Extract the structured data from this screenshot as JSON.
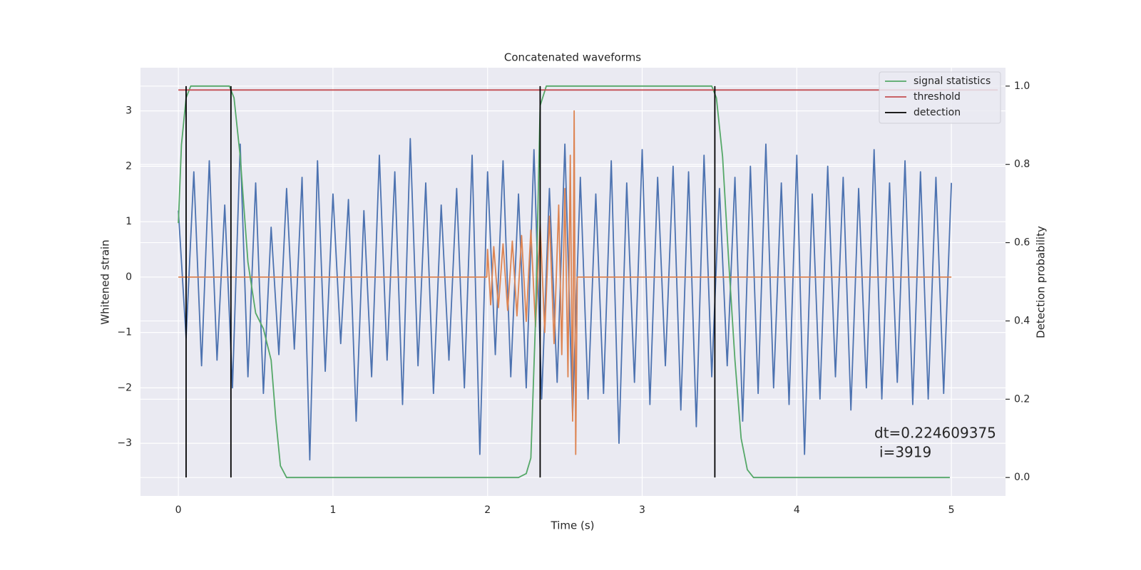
{
  "chart_data": {
    "type": "line",
    "title": "Concatenated waveforms",
    "xlabel": "Time (s)",
    "ylabel": "Whitened strain",
    "y2label": "Detection probability",
    "xlim": [
      -0.245,
      5.35
    ],
    "xticks": [
      0,
      1,
      2,
      3,
      4,
      5
    ],
    "ylim": [
      -3.95,
      3.78
    ],
    "yticks": [
      {
        "value": -3,
        "label": "−3"
      },
      {
        "value": -2,
        "label": "−2"
      },
      {
        "value": -1,
        "label": "−1"
      },
      0,
      1,
      2,
      3
    ],
    "y2lim": [
      -0.047,
      1.047
    ],
    "y2ticks": [
      {
        "value": 0,
        "label": "0.0"
      },
      0.2,
      0.4,
      0.6,
      0.8,
      {
        "value": 1,
        "label": "1.0"
      }
    ],
    "grid": true,
    "legend": "upper right",
    "annotation": [
      "dt=0.224609375",
      "i=3919"
    ],
    "series": [
      {
        "color": "#4c72b0",
        "axis": "y",
        "x": [
          0,
          0.05,
          0.1,
          0.15,
          0.2,
          0.25,
          0.3,
          0.35,
          0.4,
          0.45,
          0.5,
          0.55,
          0.6,
          0.65,
          0.7,
          0.75,
          0.8,
          0.85,
          0.9,
          0.95,
          1,
          1.05,
          1.1,
          1.15,
          1.2,
          1.25,
          1.3,
          1.35,
          1.4,
          1.45,
          1.5,
          1.55,
          1.6,
          1.65,
          1.7,
          1.75,
          1.8,
          1.85,
          1.9,
          1.95,
          2,
          2.05,
          2.1,
          2.15,
          2.2,
          2.25,
          2.3,
          2.35,
          2.4,
          2.45,
          2.5,
          2.55,
          2.6,
          2.65,
          2.7,
          2.75,
          2.8,
          2.85,
          2.9,
          2.95,
          3,
          3.05,
          3.1,
          3.15,
          3.2,
          3.25,
          3.3,
          3.35,
          3.4,
          3.45,
          3.5,
          3.55,
          3.6,
          3.65,
          3.7,
          3.75,
          3.8,
          3.85,
          3.9,
          3.95,
          4,
          4.05,
          4.1,
          4.15,
          4.2,
          4.25,
          4.3,
          4.35,
          4.4,
          4.45,
          4.5,
          4.55,
          4.6,
          4.65,
          4.7,
          4.75,
          4.8,
          4.85,
          4.9,
          4.95,
          5
        ],
        "values": [
          1.2,
          -1.1,
          1.9,
          -1.6,
          2.1,
          -1.5,
          1.3,
          -2.0,
          2.4,
          -1.8,
          1.7,
          -2.1,
          0.9,
          -1.4,
          1.6,
          -1.3,
          1.8,
          -3.3,
          2.1,
          -1.7,
          1.5,
          -1.2,
          1.4,
          -2.6,
          1.2,
          -1.8,
          2.2,
          -1.5,
          1.9,
          -2.3,
          2.5,
          -1.6,
          1.7,
          -2.1,
          1.3,
          -1.5,
          1.6,
          -2.0,
          2.2,
          -3.2,
          1.9,
          -1.4,
          2.1,
          -1.8,
          1.5,
          -2.0,
          2.3,
          -2.2,
          1.6,
          -1.9,
          2.4,
          -2.5,
          1.8,
          -2.2,
          1.5,
          -2.1,
          2.1,
          -3.0,
          1.7,
          -1.9,
          2.3,
          -2.3,
          1.8,
          -1.6,
          2.0,
          -2.4,
          1.9,
          -2.7,
          2.2,
          -1.8,
          1.6,
          -1.6,
          1.8,
          -2.6,
          2.0,
          -2.1,
          2.4,
          -2.0,
          1.7,
          -2.3,
          2.2,
          -3.2,
          1.5,
          -2.2,
          2.0,
          -1.8,
          1.8,
          -2.4,
          1.6,
          -2.0,
          2.3,
          -2.2,
          1.7,
          -1.9,
          2.1,
          -2.3,
          1.9,
          -2.2,
          1.8,
          -2.1,
          1.7
        ]
      },
      {
        "color": "#dd8452",
        "axis": "y",
        "x": [
          0,
          1.995,
          2.0,
          2.02,
          2.04,
          2.07,
          2.1,
          2.13,
          2.16,
          2.19,
          2.22,
          2.25,
          2.28,
          2.31,
          2.34,
          2.37,
          2.4,
          2.43,
          2.46,
          2.48,
          2.5,
          2.52,
          2.535,
          2.55,
          2.56,
          2.57,
          2.58,
          5
        ],
        "values": [
          0,
          0,
          0.5,
          -0.5,
          0.55,
          -0.55,
          0.6,
          -0.6,
          0.65,
          -0.7,
          0.75,
          -0.8,
          0.85,
          -0.9,
          0.95,
          -1.0,
          1.1,
          -1.2,
          1.3,
          -1.4,
          1.6,
          -1.8,
          2.2,
          -2.6,
          3.0,
          -3.2,
          0,
          0
        ]
      },
      {
        "name": "signal statistics",
        "color": "#55a868",
        "axis": "y2",
        "x": [
          0,
          0.02,
          0.05,
          0.08,
          0.33,
          0.36,
          0.4,
          0.45,
          0.5,
          0.55,
          0.6,
          0.63,
          0.66,
          0.7,
          2.2,
          2.25,
          2.28,
          2.31,
          2.34,
          2.38,
          3.45,
          3.48,
          3.52,
          3.56,
          3.6,
          3.64,
          3.68,
          3.72,
          4.99
        ],
        "values": [
          0.65,
          0.85,
          0.97,
          1.0,
          1.0,
          0.97,
          0.82,
          0.55,
          0.42,
          0.38,
          0.3,
          0.15,
          0.03,
          0.0,
          0.0,
          0.01,
          0.05,
          0.4,
          0.95,
          1.0,
          1.0,
          0.97,
          0.82,
          0.55,
          0.3,
          0.1,
          0.02,
          0.0,
          0.0
        ]
      },
      {
        "name": "threshold",
        "color": "#c44e52",
        "axis": "y2",
        "x": [
          0,
          5.3
        ],
        "values": [
          0.99,
          0.99
        ]
      },
      {
        "name": "detection",
        "color": "#000000",
        "axis": "y2",
        "kind": "vline",
        "bottom": 0,
        "x": [
          0.05,
          0.34,
          2.34,
          3.47
        ],
        "values": [
          1,
          1,
          1,
          1
        ]
      }
    ]
  }
}
